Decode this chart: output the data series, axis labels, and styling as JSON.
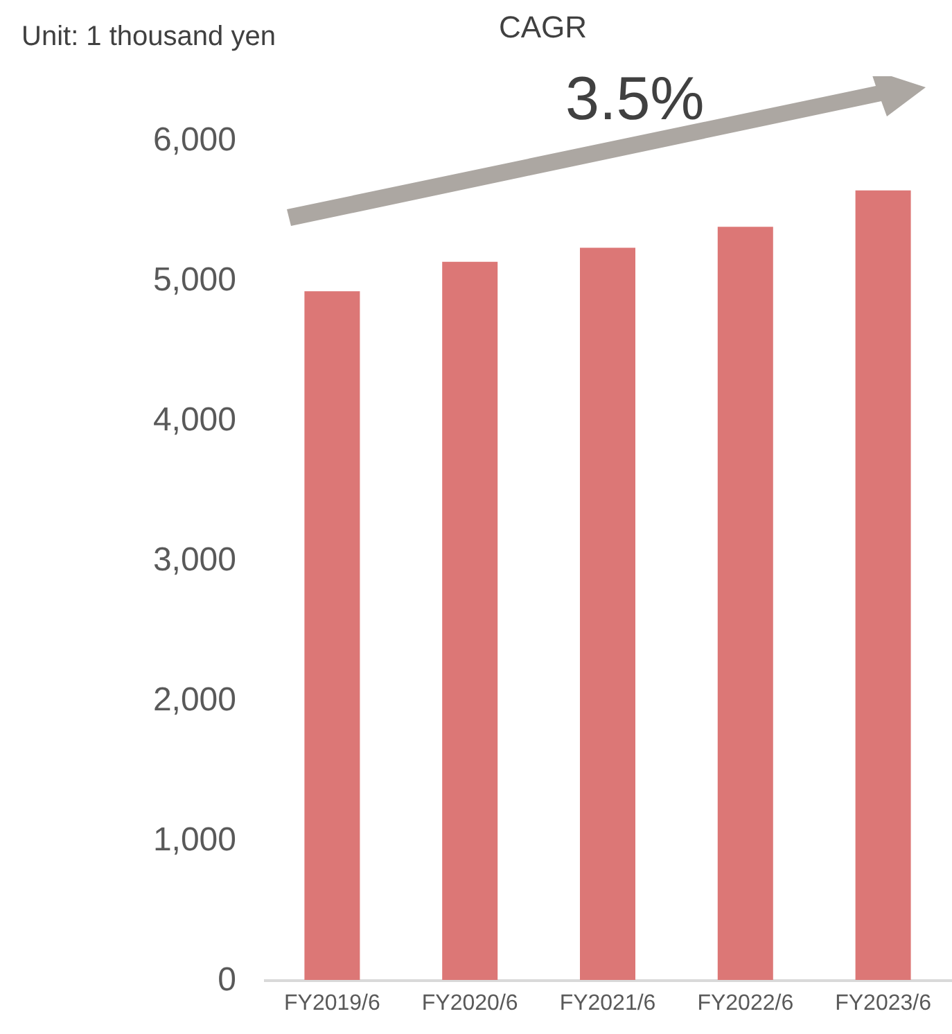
{
  "chart_data": {
    "type": "bar",
    "ylabel": "Unit: 1 thousand yen",
    "categories": [
      "FY2019/6",
      "FY2020/6",
      "FY2021/6",
      "FY2022/6",
      "FY2023/6"
    ],
    "values": [
      4920,
      5130,
      5230,
      5380,
      5640
    ],
    "color": "#dc7776",
    "ylim": [
      0,
      6000
    ],
    "yticks": [
      0,
      {
        "value": 1000,
        "label": "1,000"
      },
      {
        "value": 2000,
        "label": "2,000"
      },
      {
        "value": 3000,
        "label": "3,000"
      },
      {
        "value": 4000,
        "label": "4,000"
      },
      {
        "value": 5000,
        "label": "5,000"
      },
      {
        "value": 6000,
        "label": "6,000"
      }
    ],
    "grid": false,
    "annotations": [
      "CAGR",
      "3.5%"
    ]
  }
}
